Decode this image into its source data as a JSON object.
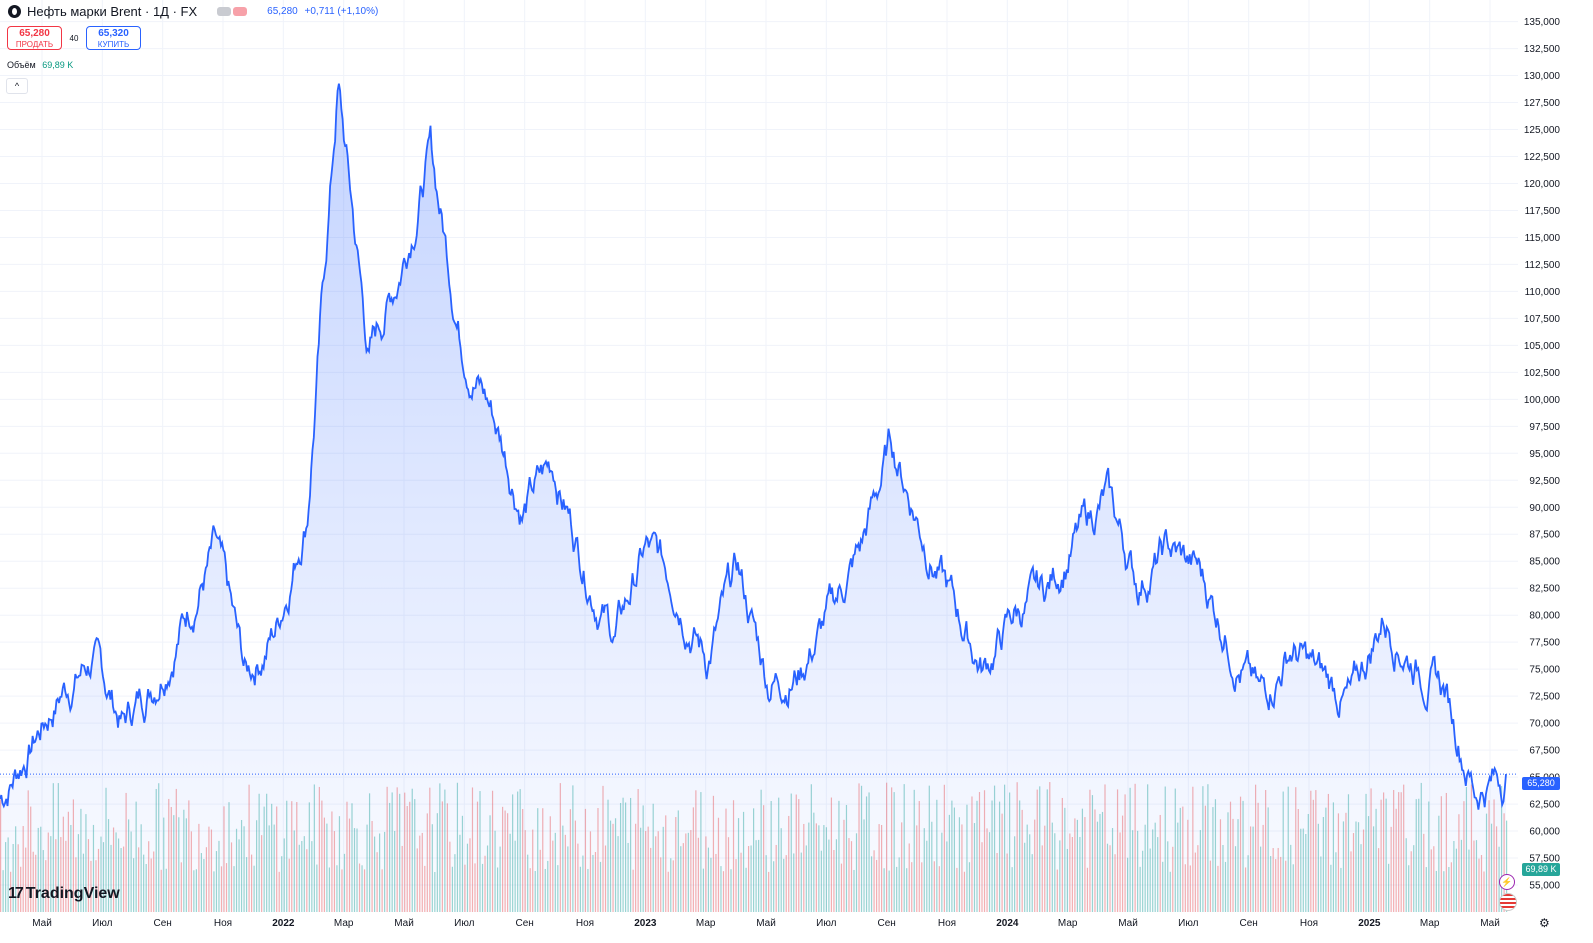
{
  "header": {
    "title": "Нефть марки Brent · 1Д · FX",
    "last_price": "65,280",
    "change": "+0,711 (+1,10%)"
  },
  "trade": {
    "sell_price": "65,280",
    "sell_label": "ПРОДАТЬ",
    "spread": "40",
    "buy_price": "65,320",
    "buy_label": "КУПИТЬ"
  },
  "volume": {
    "label": "Объём",
    "value": "69,89 K"
  },
  "logo": "TradingView",
  "badges": {
    "current_price": "65,280",
    "current_volume": "69,89 K"
  },
  "colors": {
    "line": "#2962ff",
    "fill": "#2962ff",
    "vol_up": "#26a69a",
    "vol_down": "#ef5350",
    "grid": "#f0f3fa"
  },
  "chart_data": {
    "type": "area",
    "ylim": [
      52500,
      137000
    ],
    "y_ticks": [
      "135,000",
      "132,500",
      "130,000",
      "127,500",
      "125,000",
      "122,500",
      "120,000",
      "117,500",
      "115,000",
      "112,500",
      "110,000",
      "107,500",
      "105,000",
      "102,500",
      "100,000",
      "97,500",
      "95,000",
      "92,500",
      "90,000",
      "87,500",
      "85,000",
      "82,500",
      "80,000",
      "77,500",
      "75,000",
      "72,500",
      "70,000",
      "67,500",
      "65,000",
      "62,500",
      "60,000",
      "57,500",
      "55,000"
    ],
    "x_ticks": [
      {
        "label": "Май",
        "year": false
      },
      {
        "label": "Июл",
        "year": false
      },
      {
        "label": "Сен",
        "year": false
      },
      {
        "label": "Ноя",
        "year": false
      },
      {
        "label": "2022",
        "year": true
      },
      {
        "label": "Мар",
        "year": false
      },
      {
        "label": "Май",
        "year": false
      },
      {
        "label": "Июл",
        "year": false
      },
      {
        "label": "Сен",
        "year": false
      },
      {
        "label": "Ноя",
        "year": false
      },
      {
        "label": "2023",
        "year": true
      },
      {
        "label": "Мар",
        "year": false
      },
      {
        "label": "Май",
        "year": false
      },
      {
        "label": "Июл",
        "year": false
      },
      {
        "label": "Сен",
        "year": false
      },
      {
        "label": "Ноя",
        "year": false
      },
      {
        "label": "2024",
        "year": true
      },
      {
        "label": "Мар",
        "year": false
      },
      {
        "label": "Май",
        "year": false
      },
      {
        "label": "Июл",
        "year": false
      },
      {
        "label": "Сен",
        "year": false
      },
      {
        "label": "Ноя",
        "year": false
      },
      {
        "label": "2025",
        "year": true
      },
      {
        "label": "Мар",
        "year": false
      },
      {
        "label": "Май",
        "year": false
      }
    ],
    "series": [
      {
        "x": [
          "2021-04",
          "2021-05",
          "2021-06",
          "2021-07",
          "2021-08",
          "2021-09",
          "2021-10",
          "2021-11",
          "2021-12",
          "2022-01",
          "2022-02",
          "2022-03",
          "2022-04",
          "2022-05",
          "2022-06",
          "2022-07",
          "2022-08",
          "2022-09",
          "2022-10",
          "2022-11",
          "2022-12",
          "2023-01",
          "2023-02",
          "2023-03",
          "2023-04",
          "2023-05",
          "2023-06",
          "2023-07",
          "2023-08",
          "2023-09",
          "2023-10",
          "2023-11",
          "2023-12",
          "2024-01",
          "2024-02",
          "2024-03",
          "2024-04",
          "2024-05",
          "2024-06",
          "2024-07",
          "2024-08",
          "2024-09",
          "2024-10",
          "2024-11",
          "2024-12",
          "2025-01",
          "2025-02",
          "2025-03",
          "2025-04",
          "2025-05"
        ],
        "values": [
          63,
          68,
          73,
          76,
          70,
          74,
          80,
          86,
          74,
          79,
          90,
          129,
          104,
          112,
          123,
          106,
          99,
          90,
          94,
          85,
          78,
          86,
          83,
          76,
          84,
          74,
          75,
          80,
          86,
          96,
          88,
          81,
          75,
          80,
          82,
          87,
          91,
          83,
          86,
          84,
          78,
          72,
          77,
          74,
          72,
          80,
          76,
          73,
          64,
          65.28
        ]
      }
    ]
  }
}
